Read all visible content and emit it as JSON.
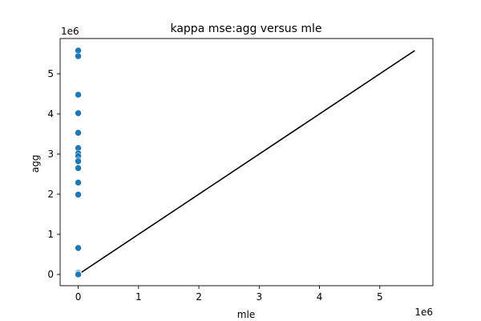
{
  "chart_data": {
    "type": "scatter",
    "title": "kappa mse:agg versus mle",
    "xlabel": "mle",
    "ylabel": "agg",
    "x_offset_label": "1e6",
    "y_offset_label": "1e6",
    "scale": 1000000,
    "xlim": [
      -300000,
      5880000
    ],
    "ylim": [
      -280000,
      5880000
    ],
    "x_ticks": [
      0,
      1000000,
      2000000,
      3000000,
      4000000,
      5000000
    ],
    "x_tick_labels": [
      "0",
      "1",
      "2",
      "3",
      "4",
      "5"
    ],
    "y_ticks": [
      0,
      1000000,
      2000000,
      3000000,
      4000000,
      5000000
    ],
    "y_tick_labels": [
      "0",
      "1",
      "2",
      "3",
      "4",
      "5"
    ],
    "grid": false,
    "marker_color": "#1f77b4",
    "line_color": "#000000",
    "points": [
      {
        "x": 0,
        "y": 5580000
      },
      {
        "x": 0,
        "y": 5440000
      },
      {
        "x": 0,
        "y": 4480000
      },
      {
        "x": 0,
        "y": 4020000
      },
      {
        "x": 0,
        "y": 3530000
      },
      {
        "x": 0,
        "y": 3150000
      },
      {
        "x": 0,
        "y": 3020000
      },
      {
        "x": 0,
        "y": 2950000
      },
      {
        "x": 0,
        "y": 2850000
      },
      {
        "x": 0,
        "y": 2820000
      },
      {
        "x": 0,
        "y": 2650000
      },
      {
        "x": 0,
        "y": 2290000
      },
      {
        "x": 0,
        "y": 1990000
      },
      {
        "x": 0,
        "y": 660000
      },
      {
        "x": 0,
        "y": 40000
      },
      {
        "x": 0,
        "y": 15000
      },
      {
        "x": 0,
        "y": 5000
      },
      {
        "x": 0,
        "y": 0
      }
    ],
    "reference_line": {
      "x": [
        0,
        5580000
      ],
      "y": [
        0,
        5580000
      ]
    }
  }
}
